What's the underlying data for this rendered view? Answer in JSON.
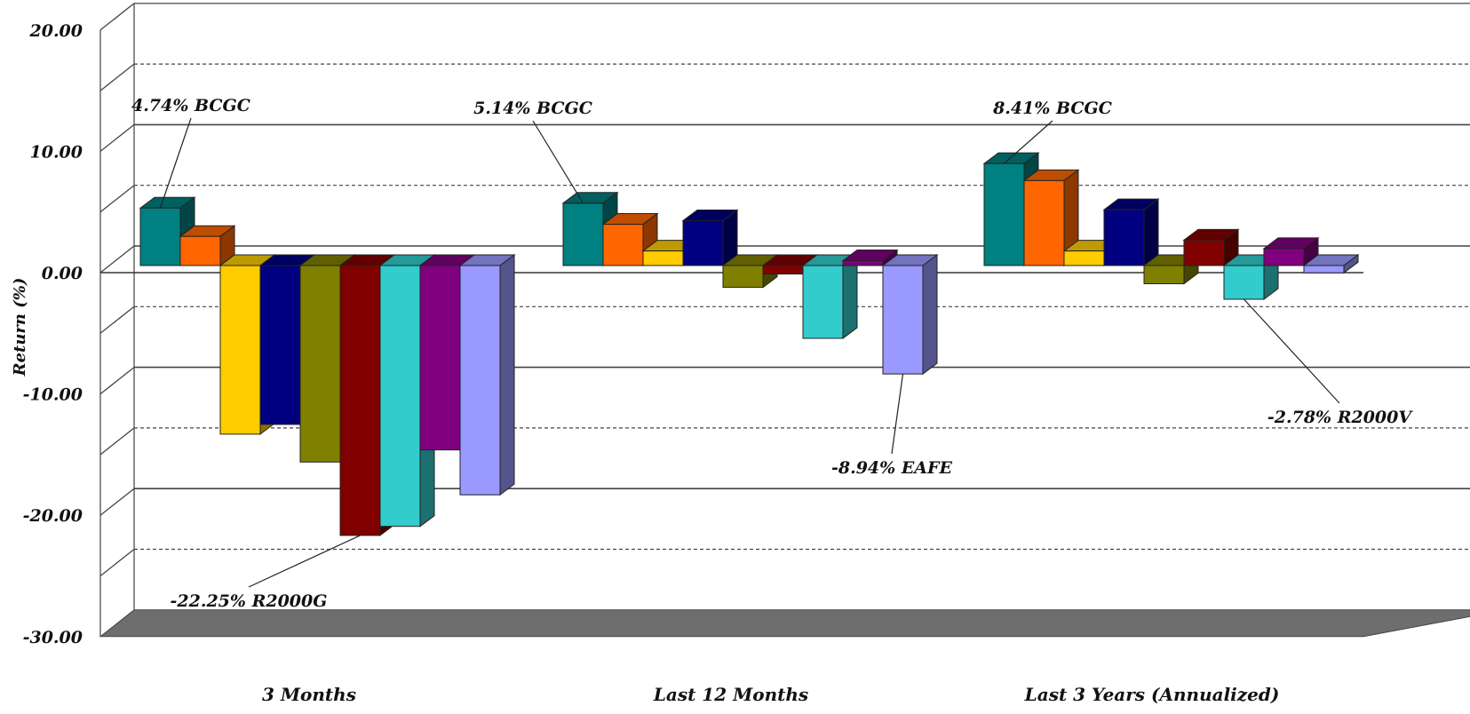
{
  "chart_data": {
    "type": "bar",
    "ylabel": "Return (%)",
    "ylim": [
      -30,
      20
    ],
    "y_ticks": [
      "20.00",
      "10.00",
      "0.00",
      "-10.00",
      "-20.00",
      "-30.00"
    ],
    "categories": [
      "3 Months",
      "Last 12 Months",
      "Last 3 Years (Annualized)"
    ],
    "series": [
      {
        "color": "#008080",
        "values": [
          4.74,
          5.14,
          8.41
        ]
      },
      {
        "color": "#FF6600",
        "values": [
          2.4,
          3.4,
          7.0
        ]
      },
      {
        "color": "#FFCC00",
        "values": [
          -13.9,
          1.2,
          1.2
        ]
      },
      {
        "color": "#000080",
        "values": [
          -13.1,
          3.7,
          4.6
        ]
      },
      {
        "color": "#808000",
        "values": [
          -16.2,
          -1.8,
          -1.5
        ]
      },
      {
        "color": "#800000",
        "values": [
          -22.25,
          -0.7,
          2.1
        ]
      },
      {
        "color": "#33CCCC",
        "values": [
          -21.5,
          -6.0,
          -2.78
        ]
      },
      {
        "color": "#800080",
        "values": [
          -15.2,
          0.4,
          1.4
        ]
      },
      {
        "color": "#9999FF",
        "values": [
          -18.9,
          -8.94,
          -0.6
        ]
      }
    ],
    "annotations": [
      {
        "text": "4.74% BCGC",
        "cat": 0,
        "series": 0
      },
      {
        "text": "-22.25% R2000G",
        "cat": 0,
        "series": 5
      },
      {
        "text": "5.14% BCGC",
        "cat": 1,
        "series": 0
      },
      {
        "text": "-8.94% EAFE",
        "cat": 1,
        "series": 8
      },
      {
        "text": "8.41% BCGC",
        "cat": 2,
        "series": 0
      },
      {
        "text": "-2.78% R2000V",
        "cat": 2,
        "series": 6
      }
    ],
    "grid": true
  }
}
